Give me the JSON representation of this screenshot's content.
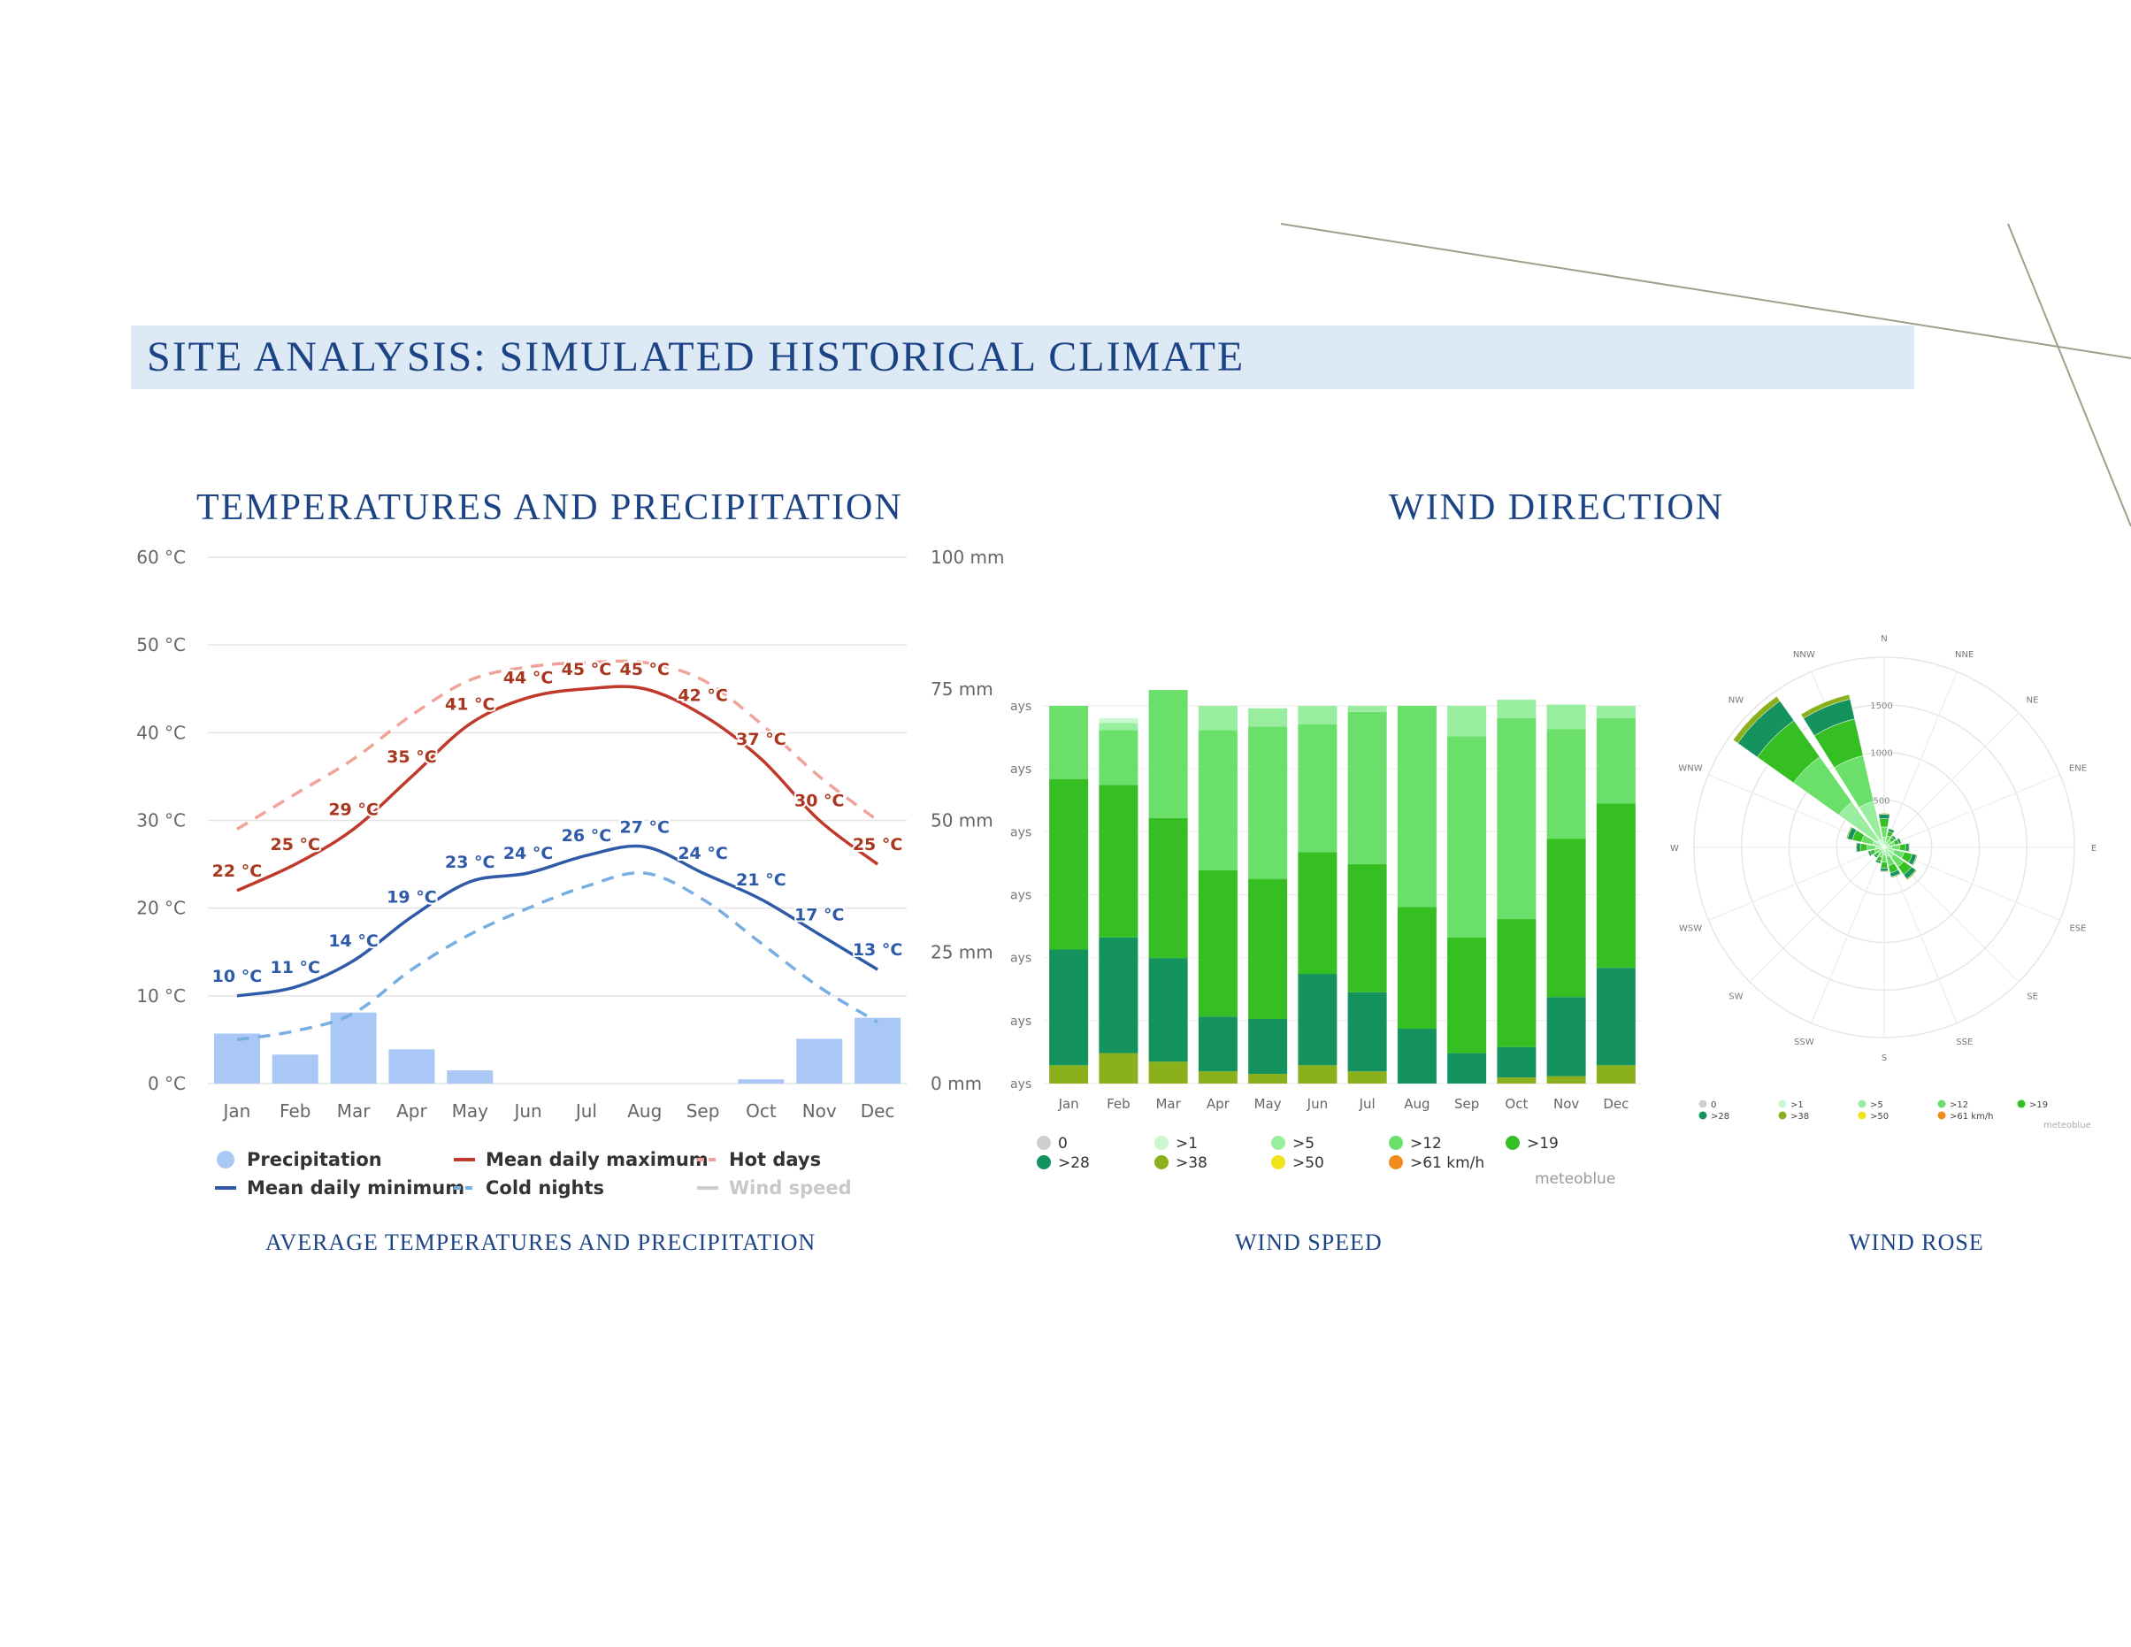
{
  "page": {
    "title": "SITE ANALYSIS: SIMULATED HISTORICAL CLIMATE",
    "section_temp_title": "TEMPERATURES AND PRECIPITATION",
    "section_wind_title": "WIND DIRECTION",
    "caption_temp": "AVERAGE TEMPERATURES AND PRECIPITATION",
    "caption_wind_speed": "WIND SPEED",
    "caption_wind_rose": "WIND ROSE",
    "accent_color": "#1c4385",
    "band_color": "#dde9f5"
  },
  "chart_data": [
    {
      "type": "line",
      "categories": [
        "Jan",
        "Feb",
        "Mar",
        "Apr",
        "May",
        "Jun",
        "Jul",
        "Aug",
        "Sep",
        "Oct",
        "Nov",
        "Dec"
      ],
      "left_axis": {
        "ticks": [
          "60 °C",
          "50 °C",
          "40 °C",
          "30 °C",
          "20 °C",
          "10 °C",
          "0 °C"
        ],
        "ylim": [
          0,
          60
        ]
      },
      "right_axis": {
        "ticks": [
          "100 mm",
          "75 mm",
          "50 mm",
          "25 mm",
          "0 mm"
        ],
        "ylim": [
          0,
          100
        ]
      },
      "series": [
        {
          "name": "Mean daily maximum",
          "color": "#c0392b",
          "values": [
            22,
            25,
            29,
            35,
            41,
            44,
            45,
            45,
            42,
            37,
            30,
            25
          ],
          "labels": [
            "22 °C",
            "25 °C",
            "29 °C",
            "35 °C",
            "41 °C",
            "44 °C",
            "45 °C",
            "45 °C",
            "42 °C",
            "37 °C",
            "30 °C",
            "25 °C"
          ]
        },
        {
          "name": "Mean daily minimum",
          "color": "#2f5aa8",
          "values": [
            10,
            11,
            14,
            19,
            23,
            24,
            26,
            27,
            24,
            21,
            17,
            13
          ],
          "labels": [
            "10 °C",
            "11 °C",
            "14 °C",
            "19 °C",
            "23 °C",
            "24 °C",
            "26 °C",
            "27 °C",
            "24 °C",
            "21 °C",
            "17 °C",
            "13 °C"
          ]
        },
        {
          "name": "Hot days",
          "color": "#f0a398",
          "values": [
            29,
            33,
            37,
            42,
            46,
            47.5,
            48,
            48,
            46,
            41,
            35,
            30
          ]
        },
        {
          "name": "Cold nights",
          "color": "#78aee0",
          "values": [
            5,
            6,
            8,
            13,
            17,
            20,
            22.5,
            24,
            21,
            16,
            11,
            7
          ]
        },
        {
          "name": "Precipitation",
          "color": "#a9c8f5",
          "values": [
            9.5,
            5.5,
            13.5,
            6.5,
            2.5,
            0,
            0,
            0,
            0,
            0.8,
            8.5,
            12.5
          ]
        }
      ],
      "legend": [
        {
          "label": "Precipitation",
          "kind": "dot",
          "color": "#a9c8f5"
        },
        {
          "label": "Mean daily maximum",
          "kind": "line",
          "color": "#c0392b"
        },
        {
          "label": "Hot days",
          "kind": "dash",
          "color": "#f0a398"
        },
        {
          "label": "Mean daily minimum",
          "kind": "line",
          "color": "#2f5aa8"
        },
        {
          "label": "Cold nights",
          "kind": "dash",
          "color": "#78aee0"
        },
        {
          "label": "Wind speed",
          "kind": "line",
          "color": "#cccccc",
          "muted": true
        }
      ],
      "grid": true,
      "legend_position": "bottom"
    },
    {
      "type": "bar",
      "stacked": true,
      "categories": [
        "Jan",
        "Feb",
        "Mar",
        "Apr",
        "May",
        "Jun",
        "Jul",
        "Aug",
        "Sep",
        "Oct",
        "Nov",
        "Dec"
      ],
      "y_tick_labels": [
        "ays",
        "ays",
        "ays",
        "ays",
        "ays",
        "ays",
        "ays"
      ],
      "ylim": [
        0,
        31
      ],
      "series": [
        {
          "name": ">38",
          "color": "#8ab01c",
          "values": [
            1.5,
            2.5,
            1.8,
            1,
            0.8,
            1.5,
            1,
            0,
            0,
            0.5,
            0.6,
            1.5
          ]
        },
        {
          "name": ">28",
          "color": "#14935f",
          "values": [
            9.5,
            9.5,
            8.5,
            4.5,
            4.5,
            7.5,
            6.5,
            4.5,
            2.5,
            2.5,
            6.5,
            8
          ]
        },
        {
          "name": ">19",
          "color": "#35bf22",
          "values": [
            14,
            12.5,
            11.5,
            12,
            11.5,
            10,
            10.5,
            10,
            9.5,
            10.5,
            13,
            13.5
          ]
        },
        {
          "name": ">12",
          "color": "#6adf6a",
          "values": [
            6,
            4.5,
            10.5,
            11.5,
            12.5,
            10.5,
            12.5,
            16.5,
            16.5,
            16.5,
            9,
            7
          ]
        },
        {
          "name": ">5",
          "color": "#98ee9e",
          "values": [
            0,
            0.6,
            0,
            2,
            1.5,
            1.5,
            0.5,
            0,
            2.5,
            1.5,
            2,
            1
          ]
        },
        {
          "name": ">1",
          "color": "#c9f7cf",
          "values": [
            0,
            0.4,
            0,
            0,
            0,
            0,
            0,
            0,
            0,
            0,
            0,
            0
          ]
        }
      ],
      "legend": [
        {
          "label": "0",
          "color": "#cfcfcf"
        },
        {
          "label": ">1",
          "color": "#c9f7cf"
        },
        {
          "label": ">5",
          "color": "#98ee9e"
        },
        {
          "label": ">12",
          "color": "#6adf6a"
        },
        {
          "label": ">19",
          "color": "#35bf22"
        },
        {
          "label": ">28",
          "color": "#14935f"
        },
        {
          "label": ">38",
          "color": "#8ab01c"
        },
        {
          "label": ">50",
          "color": "#f0e21c"
        },
        {
          "label": ">61 km/h",
          "color": "#f08c1c"
        }
      ],
      "source": "meteoblue",
      "legend_position": "bottom"
    },
    {
      "type": "wind-rose",
      "directions": [
        "N",
        "NNE",
        "NE",
        "ENE",
        "E",
        "ESE",
        "SE",
        "SSE",
        "S",
        "SSW",
        "SW",
        "WSW",
        "W",
        "WNW",
        "NW",
        "NNW"
      ],
      "radial_ticks": [
        "1500",
        "1000",
        "500",
        "0"
      ],
      "rmax": 2000,
      "totals": [
        360,
        210,
        160,
        190,
        270,
        360,
        420,
        330,
        260,
        180,
        140,
        180,
        300,
        410,
        1950,
        1650
      ],
      "legend": [
        {
          "label": "0",
          "color": "#cfcfcf"
        },
        {
          "label": ">1",
          "color": "#c9f7cf"
        },
        {
          "label": ">5",
          "color": "#98ee9e"
        },
        {
          "label": ">12",
          "color": "#6adf6a"
        },
        {
          "label": ">19",
          "color": "#35bf22"
        },
        {
          "label": ">28",
          "color": "#14935f"
        },
        {
          "label": ">38",
          "color": "#8ab01c"
        },
        {
          "label": ">50",
          "color": "#f0e21c"
        },
        {
          "label": ">61 km/h",
          "color": "#f08c1c"
        }
      ],
      "source": "meteoblue"
    }
  ]
}
